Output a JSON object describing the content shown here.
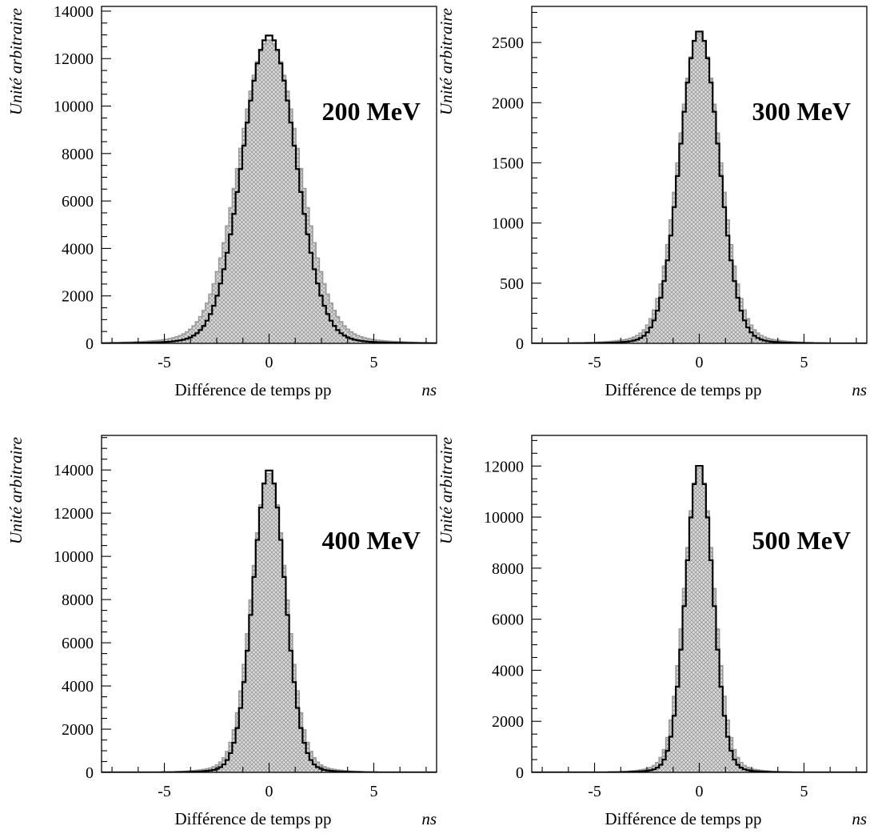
{
  "chart_data": [
    {
      "type": "histogram",
      "label": "200 MeV",
      "xlabel": "Différence de temps pp",
      "xunit": "ns",
      "ylabel": "Unité arbitraire",
      "xlim": [
        -8,
        8
      ],
      "ylim": [
        0,
        14200
      ],
      "xticks": [
        -5,
        0,
        5
      ],
      "yticks": [
        0,
        2000,
        4000,
        6000,
        8000,
        10000,
        12000,
        14000
      ],
      "series": [
        {
          "role": "grey-hatched",
          "peak": 12800,
          "mean": 0.0,
          "sigma": 1.42,
          "tail": 0.035,
          "tail_sigma": 3.2
        },
        {
          "role": "black-outline",
          "peak": 13000,
          "mean": 0.0,
          "sigma": 1.26,
          "tail": 0.02,
          "tail_sigma": 2.8
        }
      ]
    },
    {
      "type": "histogram",
      "label": "300 MeV",
      "xlabel": "Différence de temps pp",
      "xunit": "ns",
      "ylabel": "Unité arbitraire",
      "xlim": [
        -8,
        8
      ],
      "ylim": [
        0,
        2800
      ],
      "xticks": [
        -5,
        0,
        5
      ],
      "yticks": [
        0,
        500,
        1000,
        1500,
        2000,
        2500
      ],
      "series": [
        {
          "role": "grey-hatched",
          "peak": 2580,
          "mean": 0.0,
          "sigma": 0.98,
          "tail": 0.035,
          "tail_sigma": 2.3
        },
        {
          "role": "black-outline",
          "peak": 2600,
          "mean": 0.0,
          "sigma": 0.92,
          "tail": 0.02,
          "tail_sigma": 2.0
        }
      ]
    },
    {
      "type": "histogram",
      "label": "400 MeV",
      "xlabel": "Différence de temps pp",
      "xunit": "ns",
      "ylabel": "Unité arbitraire",
      "xlim": [
        -8,
        8
      ],
      "ylim": [
        0,
        15600
      ],
      "xticks": [
        -5,
        0,
        5
      ],
      "yticks": [
        0,
        2000,
        4000,
        6000,
        8000,
        10000,
        12000,
        14000
      ],
      "series": [
        {
          "role": "grey-hatched",
          "peak": 13900,
          "mean": 0.0,
          "sigma": 0.82,
          "tail": 0.035,
          "tail_sigma": 1.9
        },
        {
          "role": "black-outline",
          "peak": 14050,
          "mean": 0.0,
          "sigma": 0.76,
          "tail": 0.02,
          "tail_sigma": 1.7
        }
      ]
    },
    {
      "type": "histogram",
      "label": "500 MeV",
      "xlabel": "Différence de temps pp",
      "xunit": "ns",
      "ylabel": "Unité arbitraire",
      "xlim": [
        -8,
        8
      ],
      "ylim": [
        0,
        13200
      ],
      "xticks": [
        -5,
        0,
        5
      ],
      "yticks": [
        0,
        2000,
        4000,
        6000,
        8000,
        10000,
        12000
      ],
      "series": [
        {
          "role": "grey-hatched",
          "peak": 12000,
          "mean": 0.0,
          "sigma": 0.7,
          "tail": 0.035,
          "tail_sigma": 1.6
        },
        {
          "role": "black-outline",
          "peak": 12100,
          "mean": 0.0,
          "sigma": 0.64,
          "tail": 0.02,
          "tail_sigma": 1.45
        }
      ]
    }
  ],
  "colors": {
    "hatch_fill": "#d8d8d8",
    "hatch_line": "#8a8a8a",
    "grey_outline": "#9a9a9a",
    "black_outline": "#000000"
  }
}
